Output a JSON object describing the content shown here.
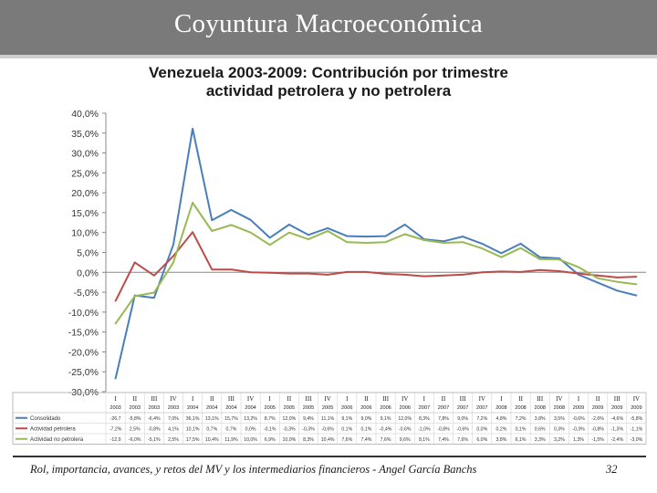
{
  "header": {
    "title": "Coyuntura Macroeconómica"
  },
  "footer": {
    "caption": "Rol, importancia, avances, y retos del MV y los intermediarios financieros - Angel García Banchs",
    "page_number": "32"
  },
  "colors": {
    "header_bg": "#7a7a7a",
    "series_blue": "#4a7ebb",
    "series_red": "#be4b48",
    "series_green": "#98b954"
  },
  "chart_data": {
    "type": "line",
    "title_line1": "Venezuela 2003-2009: Contribución por trimestre",
    "title_line2": "actividad petrolera y no petrolera",
    "ylim": [
      -30,
      40
    ],
    "yticks": [
      "40,0%",
      "35,0%",
      "30,0%",
      "25,0%",
      "20,0%",
      "15,0%",
      "10,0%",
      "5,0%",
      "0,0%",
      "-5,0%",
      "-10,0%",
      "-15,0%",
      "-20,0%",
      "-25,0%",
      "-30,0%"
    ],
    "ytick_values": [
      40,
      35,
      30,
      25,
      20,
      15,
      10,
      5,
      0,
      -5,
      -10,
      -15,
      -20,
      -25,
      -30
    ],
    "quarters": [
      "I",
      "II",
      "III",
      "IV",
      "I",
      "II",
      "III",
      "IV",
      "I",
      "II",
      "III",
      "IV",
      "I",
      "II",
      "III",
      "IV",
      "I",
      "II",
      "III",
      "IV",
      "I",
      "II",
      "III",
      "IV",
      "I",
      "II",
      "III",
      "IV"
    ],
    "years": [
      "2003",
      "2003",
      "2003",
      "2003",
      "2004",
      "2004",
      "2004",
      "2004",
      "2005",
      "2005",
      "2005",
      "2005",
      "2006",
      "2006",
      "2006",
      "2006",
      "2007",
      "2007",
      "2007",
      "2007",
      "2008",
      "2008",
      "2008",
      "2008",
      "2009",
      "2009",
      "2009",
      "2009"
    ],
    "series": [
      {
        "name": "Consolidado",
        "values": [
          -26.7,
          -5.8,
          -6.4,
          7.0,
          36.1,
          13.1,
          15.7,
          13.2,
          8.7,
          12.0,
          9.4,
          11.1,
          9.1,
          9.0,
          9.1,
          12.0,
          8.3,
          7.8,
          9.0,
          7.2,
          4.8,
          7.2,
          3.8,
          3.5,
          -0.6,
          -2.6,
          -4.6,
          -5.8
        ],
        "labels": [
          "-26,7",
          "-5,8%",
          "-6,4%",
          "7,0%",
          "36,1%",
          "13,1%",
          "15,7%",
          "13,2%",
          "8,7%",
          "12,0%",
          "9,4%",
          "11,1%",
          "9,1%",
          "9,0%",
          "9,1%",
          "12,0%",
          "8,3%",
          "7,8%",
          "9,0%",
          "7,2%",
          "4,8%",
          "7,2%",
          "3,8%",
          "3,5%",
          "-0,6%",
          "-2,6%",
          "-4,6%",
          "-5,8%"
        ]
      },
      {
        "name": "Actividad petrolera",
        "values": [
          -7.2,
          2.5,
          -0.8,
          4.1,
          10.1,
          0.7,
          0.7,
          0.0,
          -0.1,
          -0.3,
          -0.3,
          -0.6,
          0.1,
          0.1,
          -0.4,
          -0.6,
          -1.0,
          -0.8,
          -0.6,
          0.0,
          0.2,
          0.1,
          0.6,
          0.3,
          -0.3,
          -0.8,
          -1.3,
          -1.1
        ],
        "labels": [
          "-7,2%",
          "2,5%",
          "-0,8%",
          "4,1%",
          "10,1%",
          "0,7%",
          "0,7%",
          "0,0%",
          "-0,1%",
          "-0,3%",
          "-0,3%",
          "-0,6%",
          "0,1%",
          "0,1%",
          "-0,4%",
          "-0,6%",
          "-1,0%",
          "-0,8%",
          "-0,6%",
          "0,0%",
          "0,2%",
          "0,1%",
          "0,6%",
          "0,3%",
          "-0,3%",
          "-0,8%",
          "-1,3%",
          "-1,1%"
        ]
      },
      {
        "name": "Actividad no petrolera",
        "values": [
          -12.9,
          -6.0,
          -5.1,
          2.5,
          17.5,
          10.4,
          11.9,
          10.0,
          6.9,
          10.0,
          8.3,
          10.4,
          7.6,
          7.4,
          7.6,
          9.6,
          8.1,
          7.4,
          7.6,
          6.0,
          3.8,
          6.1,
          3.3,
          3.2,
          1.3,
          -1.5,
          -2.4,
          -3.0
        ],
        "labels": [
          "-12,9",
          "-6,0%",
          "-5,1%",
          "2,5%",
          "17,5%",
          "10,4%",
          "11,9%",
          "10,0%",
          "6,9%",
          "10,0%",
          "8,3%",
          "10,4%",
          "7,6%",
          "7,4%",
          "7,6%",
          "9,6%",
          "8,1%",
          "7,4%",
          "7,6%",
          "6,0%",
          "3,8%",
          "6,1%",
          "3,3%",
          "3,2%",
          "1,3%",
          "-1,5%",
          "-2,4%",
          "-3,0%"
        ]
      }
    ]
  }
}
